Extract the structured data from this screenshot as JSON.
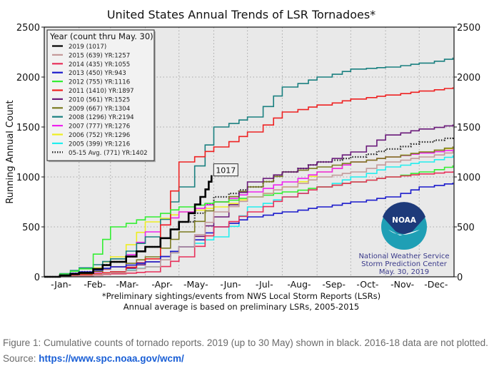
{
  "chart_data": {
    "type": "line",
    "title": "United States Annual Trends of LSR Tornadoes*",
    "xlabel": "",
    "ylabel": "Running Annual Count",
    "ylim": [
      0,
      2500
    ],
    "xlim_day_of_year": [
      1,
      366
    ],
    "yticks": [
      0,
      500,
      1000,
      1500,
      2000,
      2500
    ],
    "ytick_labels": [
      "0",
      "500",
      "1000",
      "1500",
      "2000",
      "2500"
    ],
    "xtick_labels": [
      "-Jan-",
      "-Feb-",
      "-Mar-",
      "-Apr-",
      "-May-",
      "-Jun-",
      "-Jul-",
      "-Aug-",
      "-Sep-",
      "-Oct-",
      "-Nov-",
      "-Dec-"
    ],
    "xtick_days": [
      16,
      46,
      75,
      106,
      136,
      167,
      197,
      228,
      259,
      289,
      320,
      350
    ],
    "grid": true,
    "legend_title": "Year (count thru May. 30)",
    "legend_position": "top-left",
    "x": [
      1,
      32,
      60,
      91,
      121,
      152,
      182,
      213,
      244,
      274,
      305,
      335,
      365
    ],
    "series": [
      {
        "name": "2019 (1017)",
        "color": "#000000",
        "style": "solid",
        "width": 2.6,
        "x": [
          1,
          32,
          60,
          91,
          121,
          140,
          150
        ],
        "values": [
          0,
          40,
          150,
          300,
          550,
          800,
          1017
        ]
      },
      {
        "name": "2015 (639) YR:1257",
        "color": "#c49a9a",
        "style": "solid",
        "width": 1.6,
        "values": [
          0,
          10,
          40,
          100,
          300,
          650,
          800,
          900,
          1000,
          1050,
          1150,
          1200,
          1257
        ]
      },
      {
        "name": "2014 (435) YR:1055",
        "color": "#e8305a",
        "style": "solid",
        "width": 1.6,
        "values": [
          0,
          10,
          30,
          50,
          200,
          500,
          650,
          800,
          900,
          950,
          1000,
          1030,
          1055
        ]
      },
      {
        "name": "2013 (450) YR:943",
        "color": "#1a1acc",
        "style": "solid",
        "width": 1.6,
        "values": [
          0,
          50,
          100,
          150,
          300,
          500,
          600,
          650,
          700,
          750,
          800,
          900,
          943
        ]
      },
      {
        "name": "2012 (755) YR:1116",
        "color": "#33ee33",
        "style": "solid",
        "width": 1.6,
        "values": [
          0,
          80,
          500,
          600,
          700,
          750,
          800,
          850,
          900,
          950,
          1000,
          1050,
          1116
        ]
      },
      {
        "name": "2011 (1410) YR:1897",
        "color": "#ee2222",
        "style": "solid",
        "width": 1.6,
        "values": [
          0,
          20,
          50,
          180,
          1150,
          1300,
          1450,
          1650,
          1720,
          1780,
          1820,
          1860,
          1897
        ]
      },
      {
        "name": "2010 (561) YR:1525",
        "color": "#6a1a7a",
        "style": "solid",
        "width": 1.6,
        "values": [
          0,
          10,
          50,
          150,
          300,
          600,
          950,
          1050,
          1150,
          1250,
          1420,
          1480,
          1525
        ]
      },
      {
        "name": "2009 (667) YR:1304",
        "color": "#7a7a20",
        "style": "solid",
        "width": 1.6,
        "values": [
          0,
          30,
          100,
          200,
          450,
          750,
          900,
          1050,
          1100,
          1150,
          1200,
          1250,
          1304
        ]
      },
      {
        "name": "2008 (1296) YR:2194",
        "color": "#1a8080",
        "style": "solid",
        "width": 1.6,
        "values": [
          0,
          90,
          180,
          400,
          900,
          1500,
          1600,
          1900,
          2000,
          2080,
          2100,
          2140,
          2194
        ]
      },
      {
        "name": "2007 (777) YR:1276",
        "color": "#ee22ee",
        "style": "solid",
        "width": 1.6,
        "values": [
          0,
          20,
          100,
          450,
          650,
          750,
          850,
          950,
          1050,
          1150,
          1200,
          1240,
          1276
        ]
      },
      {
        "name": "2006 (752) YR:1296",
        "color": "#eeee22",
        "style": "solid",
        "width": 1.6,
        "values": [
          0,
          30,
          200,
          550,
          650,
          700,
          800,
          900,
          1050,
          1150,
          1200,
          1250,
          1296
        ]
      },
      {
        "name": "2005 (399) YR:1216",
        "color": "#22eeee",
        "style": "solid",
        "width": 1.6,
        "values": [
          0,
          20,
          50,
          100,
          300,
          400,
          700,
          800,
          900,
          1000,
          1100,
          1150,
          1216
        ]
      },
      {
        "name": "05-15 Avg. (771) YR:1402",
        "color": "#222222",
        "style": "dotted",
        "width": 2.2,
        "values": [
          0,
          50,
          150,
          300,
          550,
          800,
          900,
          1050,
          1150,
          1200,
          1280,
          1350,
          1402
        ]
      }
    ],
    "annotations": [
      {
        "text": "1017",
        "x_day": 150,
        "y": 1017,
        "boxed": true
      }
    ],
    "footnotes": [
      "*Preliminary sightings/events from NWS Local Storm Reports (LSRs)",
      "Annual average is based on preliminary LSRs, 2005-2015"
    ],
    "logo": {
      "name": "NOAA",
      "lines": [
        "National Weather Service",
        "Storm Prediction Center",
        "May. 30, 2019"
      ]
    }
  },
  "caption": {
    "text": "Figure 1: Cumulative counts of tornado reports. 2019 (up to 30 May) shown in black. 2016-18 data are not plotted. Source: ",
    "link_text": "https://www.spc.noaa.gov/wcm/"
  },
  "colors": {
    "plot_bg": "#e9e9e9",
    "grid": "#a8a8a8",
    "logo_navy": "#1d3a7a",
    "logo_teal": "#1f9fb5",
    "logo_text": "#3a3a8a"
  }
}
